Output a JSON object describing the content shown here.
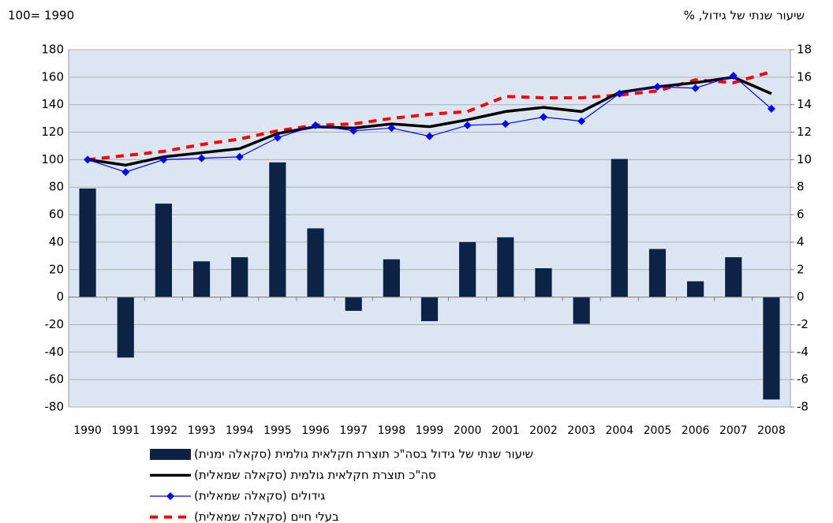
{
  "chart_data": {
    "type": "bar",
    "y_label": "100= 1990",
    "y2_label": "שיעור שנתי של גידול, %",
    "categories": [
      "1990",
      "1991",
      "1992",
      "1993",
      "1994",
      "1995",
      "1996",
      "1997",
      "1998",
      "1999",
      "2000",
      "2001",
      "2002",
      "2003",
      "2004",
      "2005",
      "2006",
      "2007",
      "2008"
    ],
    "ylim": [
      -80,
      180
    ],
    "yticks": [
      -80,
      -60,
      -40,
      -20,
      0,
      20,
      40,
      60,
      80,
      100,
      120,
      140,
      160,
      180
    ],
    "y2lim": [
      -8,
      18
    ],
    "y2ticks": [
      -8,
      -6,
      -4,
      -2,
      0,
      2,
      4,
      6,
      8,
      10,
      12,
      14,
      16,
      18
    ],
    "grid": true,
    "series": [
      {
        "name": "שיעור שנתי של גידול בסה\"כ תוצרת חקלאית גולמית (סקאלה ימנית)",
        "type": "bar",
        "axis": "y2",
        "color": "#0d2346",
        "values": [
          7.9,
          -4.4,
          6.8,
          2.6,
          2.9,
          9.8,
          5.0,
          -1.0,
          2.75,
          -1.75,
          4.0,
          4.35,
          2.1,
          -1.95,
          10.05,
          3.5,
          1.15,
          2.9,
          -7.45
        ]
      },
      {
        "name": "סה\"כ תוצרת חקלאית גולמית (סקאלה שמאלית)",
        "type": "line",
        "color": "#000000",
        "values": [
          100,
          96,
          102,
          105,
          108,
          119,
          124,
          123,
          126,
          124,
          129,
          135,
          138,
          135,
          149,
          153,
          156,
          160,
          148
        ]
      },
      {
        "name": "גידולים (סקאלה שמאלית)",
        "type": "line-marker",
        "color": "#0000ff",
        "values": [
          100,
          91,
          100,
          101,
          102,
          116,
          125,
          121,
          123,
          117,
          125,
          126,
          131,
          128,
          148,
          153,
          152,
          161,
          137
        ]
      },
      {
        "name": "בעלי חיים (סקאלה שמאלית)",
        "type": "dashed",
        "color": "#ff0000",
        "values": [
          100,
          103,
          106,
          111,
          115,
          121,
          125,
          126,
          130,
          133,
          135,
          146,
          145,
          145,
          147,
          150,
          158,
          156,
          164
        ]
      }
    ]
  }
}
